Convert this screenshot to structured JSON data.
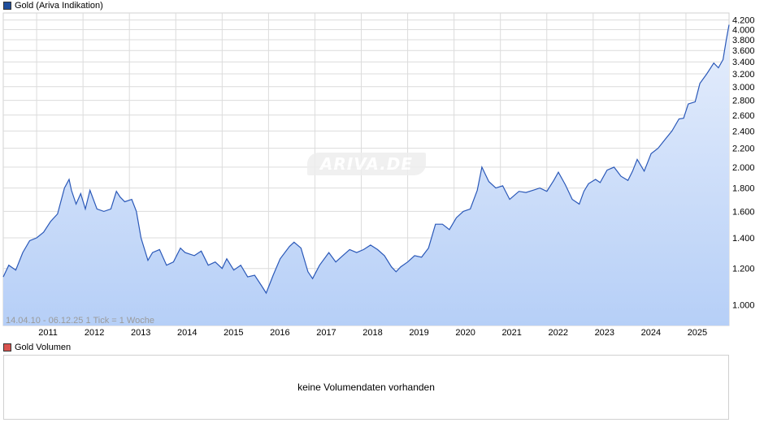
{
  "legend_price": {
    "label": "Gold (Ariva Indikation)",
    "color": "#1f4e9c"
  },
  "legend_volume": {
    "label": "Gold Volumen",
    "color": "#d9534f"
  },
  "watermark": "ARIVA.DE",
  "range_label": "14.04.10 - 06.12.25   1 Tick = 1 Woche",
  "volume_message": "keine Volumendaten vorhanden",
  "colors": {
    "line": "#2a58b8",
    "fill_top": "#e6eefc",
    "fill_bottom": "#b6cff7",
    "grid": "#dcdcdc"
  },
  "chart_data": {
    "type": "area",
    "title": "Gold (Ariva Indikation)",
    "xlabel": "",
    "ylabel": "",
    "ylog": true,
    "ylim": [
      0.9,
      4.35
    ],
    "y_ticks": [
      1.0,
      1.2,
      1.4,
      1.6,
      1.8,
      2.0,
      2.2,
      2.4,
      2.6,
      2.8,
      3.0,
      3.2,
      3.4,
      3.6,
      3.8,
      4.0,
      4.2
    ],
    "y_tick_labels": [
      "1.000",
      "1.200",
      "1.400",
      "1.600",
      "1.800",
      "2.000",
      "2.200",
      "2.400",
      "2.600",
      "2.800",
      "3.000",
      "3.200",
      "3.400",
      "3.600",
      "3.800",
      "4.000",
      "4.200"
    ],
    "x_range": [
      2010.28,
      2025.93
    ],
    "x_ticks": [
      2011,
      2012,
      2013,
      2014,
      2015,
      2016,
      2017,
      2018,
      2019,
      2020,
      2021,
      2022,
      2023,
      2024,
      2025
    ],
    "x_tick_labels": [
      "2011",
      "2012",
      "2013",
      "2014",
      "2015",
      "2016",
      "2017",
      "2018",
      "2019",
      "2020",
      "2021",
      "2022",
      "2023",
      "2024",
      "2025"
    ],
    "grid": true,
    "legend": "top-left",
    "series": [
      {
        "name": "Gold (Ariva Indikation)",
        "x": [
          2010.28,
          2010.4,
          2010.55,
          2010.7,
          2010.85,
          2011.0,
          2011.15,
          2011.3,
          2011.45,
          2011.6,
          2011.7,
          2011.75,
          2011.85,
          2011.95,
          2012.05,
          2012.15,
          2012.3,
          2012.45,
          2012.6,
          2012.72,
          2012.8,
          2012.9,
          2013.05,
          2013.15,
          2013.25,
          2013.4,
          2013.5,
          2013.65,
          2013.8,
          2013.95,
          2014.1,
          2014.2,
          2014.4,
          2014.55,
          2014.7,
          2014.85,
          2015.0,
          2015.1,
          2015.25,
          2015.4,
          2015.55,
          2015.7,
          2015.85,
          2015.95,
          2016.1,
          2016.25,
          2016.45,
          2016.55,
          2016.7,
          2016.85,
          2016.95,
          2017.1,
          2017.3,
          2017.45,
          2017.6,
          2017.75,
          2017.9,
          2018.05,
          2018.2,
          2018.35,
          2018.5,
          2018.65,
          2018.75,
          2018.85,
          2019.0,
          2019.15,
          2019.3,
          2019.45,
          2019.6,
          2019.75,
          2019.9,
          2020.05,
          2020.2,
          2020.35,
          2020.5,
          2020.6,
          2020.75,
          2020.9,
          2021.05,
          2021.2,
          2021.4,
          2021.55,
          2021.7,
          2021.85,
          2022.0,
          2022.15,
          2022.25,
          2022.4,
          2022.55,
          2022.7,
          2022.8,
          2022.9,
          2023.05,
          2023.15,
          2023.3,
          2023.45,
          2023.6,
          2023.75,
          2023.85,
          2023.95,
          2024.1,
          2024.25,
          2024.4,
          2024.55,
          2024.7,
          2024.85,
          2024.95,
          2025.05,
          2025.2,
          2025.3,
          2025.45,
          2025.6,
          2025.7,
          2025.8,
          2025.87,
          2025.93
        ],
        "y": [
          1.15,
          1.22,
          1.19,
          1.3,
          1.38,
          1.4,
          1.44,
          1.52,
          1.58,
          1.8,
          1.88,
          1.78,
          1.66,
          1.75,
          1.62,
          1.78,
          1.62,
          1.6,
          1.62,
          1.77,
          1.72,
          1.68,
          1.7,
          1.6,
          1.4,
          1.25,
          1.3,
          1.32,
          1.22,
          1.24,
          1.33,
          1.3,
          1.28,
          1.31,
          1.22,
          1.24,
          1.2,
          1.26,
          1.19,
          1.22,
          1.15,
          1.16,
          1.1,
          1.06,
          1.16,
          1.26,
          1.34,
          1.37,
          1.33,
          1.18,
          1.14,
          1.22,
          1.3,
          1.24,
          1.28,
          1.32,
          1.3,
          1.32,
          1.35,
          1.32,
          1.28,
          1.21,
          1.18,
          1.21,
          1.24,
          1.28,
          1.27,
          1.33,
          1.5,
          1.5,
          1.46,
          1.55,
          1.6,
          1.62,
          1.78,
          2.0,
          1.86,
          1.8,
          1.82,
          1.7,
          1.77,
          1.76,
          1.78,
          1.8,
          1.77,
          1.87,
          1.95,
          1.83,
          1.7,
          1.66,
          1.77,
          1.84,
          1.88,
          1.85,
          1.97,
          2.0,
          1.91,
          1.87,
          1.96,
          2.08,
          1.96,
          2.14,
          2.2,
          2.3,
          2.4,
          2.55,
          2.56,
          2.75,
          2.78,
          3.05,
          3.2,
          3.38,
          3.3,
          3.44,
          3.8,
          4.1
        ]
      }
    ]
  }
}
